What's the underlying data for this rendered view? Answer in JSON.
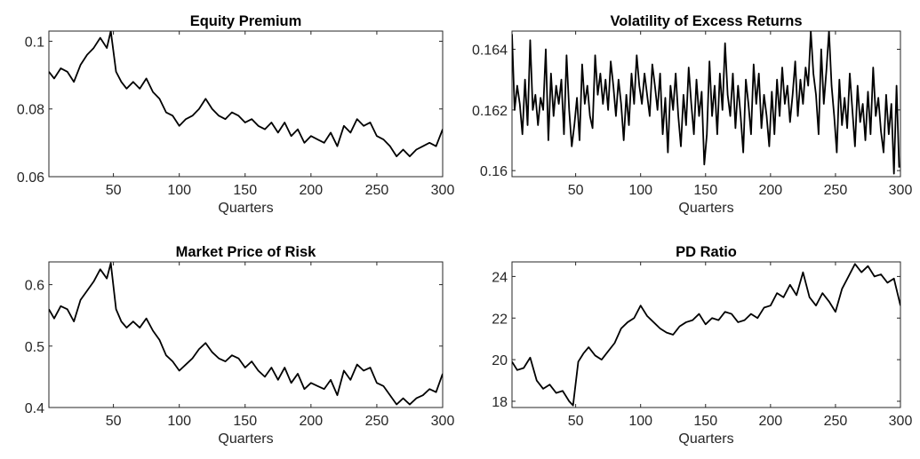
{
  "chart_data": [
    {
      "type": "line",
      "title": "Equity Premium",
      "xlabel": "Quarters",
      "ylabel": "",
      "xlim": [
        1,
        300
      ],
      "ylim": [
        0.06,
        0.103
      ],
      "xticks": [
        "50",
        "100",
        "150",
        "200",
        "250",
        "300"
      ],
      "xtick_values": [
        50,
        100,
        150,
        200,
        250,
        300
      ],
      "yticks": [
        "0.06",
        "0.08",
        "0.1"
      ],
      "ytick_values": [
        0.06,
        0.08,
        0.1
      ],
      "grid": false,
      "series": [
        {
          "x": [
            1,
            5,
            10,
            15,
            20,
            25,
            30,
            35,
            40,
            45,
            48,
            52,
            56,
            60,
            65,
            70,
            75,
            80,
            85,
            90,
            95,
            100,
            105,
            110,
            115,
            120,
            125,
            130,
            135,
            140,
            145,
            150,
            155,
            160,
            165,
            170,
            175,
            180,
            185,
            190,
            195,
            200,
            205,
            210,
            215,
            220,
            225,
            230,
            235,
            240,
            245,
            250,
            255,
            260,
            265,
            270,
            275,
            280,
            285,
            290,
            295,
            300
          ],
          "y": [
            0.091,
            0.089,
            0.092,
            0.091,
            0.088,
            0.093,
            0.096,
            0.098,
            0.101,
            0.098,
            0.103,
            0.091,
            0.088,
            0.086,
            0.088,
            0.086,
            0.089,
            0.085,
            0.083,
            0.079,
            0.078,
            0.075,
            0.077,
            0.078,
            0.08,
            0.083,
            0.08,
            0.078,
            0.077,
            0.079,
            0.078,
            0.076,
            0.077,
            0.075,
            0.074,
            0.076,
            0.073,
            0.076,
            0.072,
            0.074,
            0.07,
            0.072,
            0.071,
            0.07,
            0.073,
            0.069,
            0.075,
            0.073,
            0.077,
            0.075,
            0.076,
            0.072,
            0.071,
            0.069,
            0.066,
            0.068,
            0.066,
            0.068,
            0.069,
            0.07,
            0.069,
            0.074
          ]
        }
      ]
    },
    {
      "type": "line",
      "title": "Volatility of Excess Returns",
      "xlabel": "Quarters",
      "ylabel": "",
      "xlim": [
        1,
        300
      ],
      "ylim": [
        0.1598,
        0.1646
      ],
      "xticks": [
        "50",
        "100",
        "150",
        "200",
        "250",
        "300"
      ],
      "xtick_values": [
        50,
        100,
        150,
        200,
        250,
        300
      ],
      "yticks": [
        "0.16",
        "0.162",
        "0.164"
      ],
      "yticks_values": [
        0.16,
        0.162,
        0.164
      ],
      "ytick_values": [
        0.16,
        0.162,
        0.164
      ],
      "grid": false,
      "series": [
        {
          "x": [
            1,
            3,
            5,
            7,
            9,
            11,
            13,
            15,
            17,
            19,
            21,
            23,
            25,
            27,
            29,
            31,
            33,
            35,
            37,
            39,
            41,
            43,
            45,
            47,
            49,
            51,
            53,
            55,
            57,
            59,
            61,
            63,
            65,
            67,
            69,
            71,
            73,
            75,
            77,
            79,
            81,
            83,
            85,
            87,
            89,
            91,
            93,
            95,
            97,
            99,
            101,
            103,
            105,
            107,
            109,
            111,
            113,
            115,
            117,
            119,
            121,
            123,
            125,
            127,
            129,
            131,
            133,
            135,
            137,
            139,
            141,
            143,
            145,
            147,
            149,
            151,
            153,
            155,
            157,
            159,
            161,
            163,
            165,
            167,
            169,
            171,
            173,
            175,
            177,
            179,
            181,
            183,
            185,
            187,
            189,
            191,
            193,
            195,
            197,
            199,
            201,
            203,
            205,
            207,
            209,
            211,
            213,
            215,
            217,
            219,
            221,
            223,
            225,
            227,
            229,
            231,
            233,
            235,
            237,
            239,
            241,
            243,
            245,
            247,
            249,
            251,
            253,
            255,
            257,
            259,
            261,
            263,
            265,
            267,
            269,
            271,
            273,
            275,
            277,
            279,
            281,
            283,
            285,
            287,
            289,
            291,
            293,
            295,
            297,
            299
          ],
          "y": [
            0.1645,
            0.162,
            0.1628,
            0.1622,
            0.1612,
            0.163,
            0.1615,
            0.1643,
            0.162,
            0.1625,
            0.1615,
            0.1624,
            0.162,
            0.164,
            0.161,
            0.1632,
            0.1618,
            0.1628,
            0.1622,
            0.163,
            0.1612,
            0.1638,
            0.162,
            0.1608,
            0.1615,
            0.1624,
            0.161,
            0.1635,
            0.1622,
            0.1628,
            0.1618,
            0.1614,
            0.1638,
            0.1625,
            0.1632,
            0.1622,
            0.163,
            0.162,
            0.1636,
            0.1628,
            0.1618,
            0.163,
            0.1622,
            0.161,
            0.1625,
            0.1615,
            0.1632,
            0.1622,
            0.1638,
            0.1628,
            0.1622,
            0.1632,
            0.1625,
            0.1618,
            0.1635,
            0.1628,
            0.162,
            0.1632,
            0.1612,
            0.1624,
            0.1606,
            0.1628,
            0.162,
            0.1632,
            0.1618,
            0.1608,
            0.1625,
            0.1615,
            0.1634,
            0.1622,
            0.1612,
            0.163,
            0.1618,
            0.1626,
            0.1602,
            0.1612,
            0.1636,
            0.1618,
            0.1628,
            0.1612,
            0.1632,
            0.162,
            0.1642,
            0.1625,
            0.1618,
            0.1632,
            0.1614,
            0.1628,
            0.1618,
            0.1606,
            0.163,
            0.1622,
            0.1612,
            0.1635,
            0.1622,
            0.1632,
            0.1614,
            0.1625,
            0.1618,
            0.1608,
            0.1626,
            0.1612,
            0.163,
            0.1618,
            0.1634,
            0.1622,
            0.1628,
            0.1616,
            0.1625,
            0.1636,
            0.1618,
            0.163,
            0.1622,
            0.1634,
            0.1628,
            0.1646,
            0.1632,
            0.1625,
            0.1612,
            0.164,
            0.1622,
            0.1633,
            0.1646,
            0.1628,
            0.1618,
            0.1606,
            0.163,
            0.1615,
            0.1624,
            0.1614,
            0.1632,
            0.162,
            0.1608,
            0.1628,
            0.1616,
            0.1622,
            0.161,
            0.1626,
            0.1612,
            0.1634,
            0.1618,
            0.1624,
            0.1613,
            0.1606,
            0.1625,
            0.1612,
            0.1622,
            0.1599,
            0.1628,
            0.1601
          ]
        }
      ]
    },
    {
      "type": "line",
      "title": "Market Price of Risk",
      "xlabel": "Quarters",
      "ylabel": "",
      "xlim": [
        1,
        300
      ],
      "ylim": [
        0.4,
        0.637
      ],
      "xticks": [
        "50",
        "100",
        "150",
        "200",
        "250",
        "300"
      ],
      "xtick_values": [
        50,
        100,
        150,
        200,
        250,
        300
      ],
      "yticks": [
        "0.4",
        "0.5",
        "0.6"
      ],
      "ytick_values": [
        0.4,
        0.5,
        0.6
      ],
      "grid": false,
      "series": [
        {
          "x": [
            1,
            5,
            10,
            15,
            20,
            25,
            30,
            35,
            40,
            45,
            48,
            52,
            56,
            60,
            65,
            70,
            75,
            80,
            85,
            90,
            95,
            100,
            105,
            110,
            115,
            120,
            125,
            130,
            135,
            140,
            145,
            150,
            155,
            160,
            165,
            170,
            175,
            180,
            185,
            190,
            195,
            200,
            205,
            210,
            215,
            220,
            225,
            230,
            235,
            240,
            245,
            250,
            255,
            260,
            265,
            270,
            275,
            280,
            285,
            290,
            295,
            300
          ],
          "y": [
            0.56,
            0.545,
            0.565,
            0.56,
            0.54,
            0.575,
            0.59,
            0.605,
            0.625,
            0.61,
            0.635,
            0.56,
            0.54,
            0.53,
            0.54,
            0.53,
            0.545,
            0.525,
            0.51,
            0.485,
            0.475,
            0.46,
            0.47,
            0.48,
            0.495,
            0.505,
            0.49,
            0.48,
            0.475,
            0.485,
            0.48,
            0.465,
            0.475,
            0.46,
            0.45,
            0.465,
            0.445,
            0.465,
            0.44,
            0.455,
            0.43,
            0.44,
            0.435,
            0.43,
            0.445,
            0.42,
            0.46,
            0.445,
            0.47,
            0.46,
            0.465,
            0.44,
            0.435,
            0.42,
            0.405,
            0.415,
            0.405,
            0.415,
            0.42,
            0.43,
            0.425,
            0.455
          ]
        }
      ]
    },
    {
      "type": "line",
      "title": "PD Ratio",
      "xlabel": "Quarters",
      "ylabel": "",
      "xlim": [
        1,
        300
      ],
      "ylim": [
        17.7,
        24.7
      ],
      "xticks": [
        "50",
        "100",
        "150",
        "200",
        "250",
        "300"
      ],
      "xtick_values": [
        50,
        100,
        150,
        200,
        250,
        300
      ],
      "yticks": [
        "18",
        "20",
        "22",
        "24"
      ],
      "ytick_values": [
        18,
        20,
        22,
        24
      ],
      "grid": false,
      "series": [
        {
          "x": [
            1,
            5,
            10,
            15,
            20,
            25,
            30,
            35,
            40,
            45,
            48,
            52,
            56,
            60,
            65,
            70,
            75,
            80,
            85,
            90,
            95,
            100,
            105,
            110,
            115,
            120,
            125,
            130,
            135,
            140,
            145,
            150,
            155,
            160,
            165,
            170,
            175,
            180,
            185,
            190,
            195,
            200,
            205,
            210,
            215,
            220,
            225,
            230,
            235,
            240,
            245,
            250,
            255,
            260,
            265,
            270,
            275,
            280,
            285,
            290,
            295,
            300
          ],
          "y": [
            19.9,
            19.5,
            19.6,
            20.1,
            19.0,
            18.6,
            18.8,
            18.4,
            18.5,
            18.0,
            17.8,
            19.9,
            20.3,
            20.6,
            20.2,
            20.0,
            20.4,
            20.8,
            21.5,
            21.8,
            22.0,
            22.6,
            22.1,
            21.8,
            21.5,
            21.3,
            21.2,
            21.6,
            21.8,
            21.9,
            22.2,
            21.7,
            22.0,
            21.9,
            22.3,
            22.2,
            21.8,
            21.9,
            22.2,
            22.0,
            22.5,
            22.6,
            23.2,
            23.0,
            23.6,
            23.1,
            24.2,
            23.0,
            22.6,
            23.2,
            22.8,
            22.3,
            23.4,
            24.0,
            24.6,
            24.2,
            24.5,
            24.0,
            24.1,
            23.7,
            23.9,
            22.6
          ]
        }
      ]
    }
  ]
}
